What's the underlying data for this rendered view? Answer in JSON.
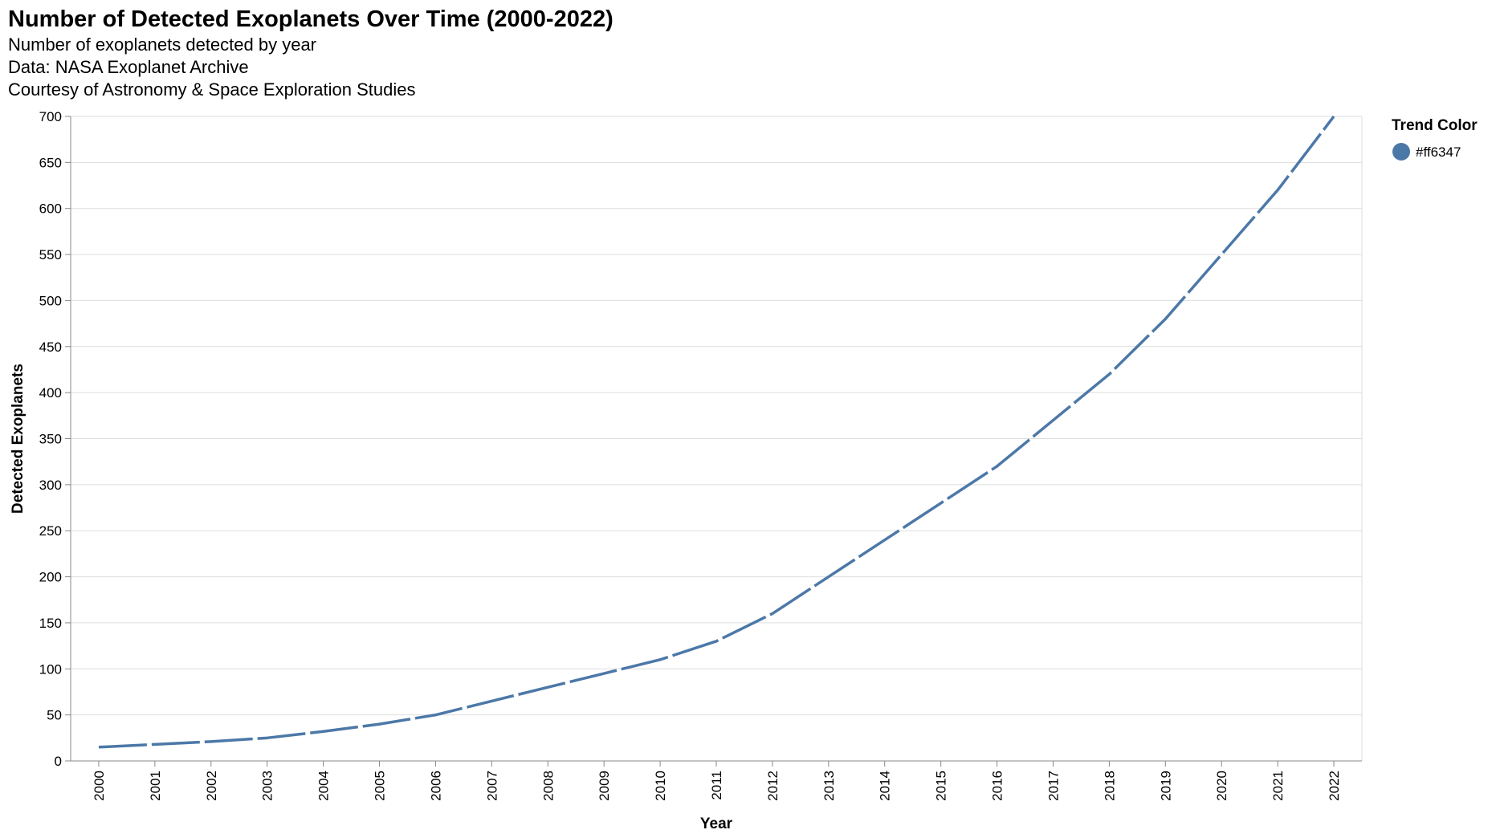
{
  "chart_data": {
    "type": "line",
    "title": "Number of Detected Exoplanets Over Time (2000-2022)",
    "subtitle": [
      "Number of exoplanets detected by year",
      "Data: NASA Exoplanet Archive",
      "Courtesy of Astronomy & Space Exploration Studies"
    ],
    "xlabel": "Year",
    "ylabel": "Detected Exoplanets",
    "x": [
      "2000",
      "2001",
      "2002",
      "2003",
      "2004",
      "2005",
      "2006",
      "2007",
      "2008",
      "2009",
      "2010",
      "2011",
      "2012",
      "2013",
      "2014",
      "2015",
      "2016",
      "2017",
      "2018",
      "2019",
      "2020",
      "2021",
      "2022"
    ],
    "series": [
      {
        "name": "#ff6347",
        "color": "#4c78a8",
        "values": [
          15,
          18,
          21,
          25,
          32,
          40,
          50,
          65,
          80,
          95,
          110,
          130,
          160,
          200,
          240,
          280,
          320,
          370,
          420,
          480,
          550,
          620,
          700
        ]
      }
    ],
    "ylim": [
      0,
      700
    ],
    "yticks": [
      0,
      50,
      100,
      150,
      200,
      250,
      300,
      350,
      400,
      450,
      500,
      550,
      600,
      650,
      700
    ],
    "grid": true,
    "line_style": "dashed",
    "legend": {
      "title": "Trend Color",
      "placement": "top-right"
    }
  }
}
